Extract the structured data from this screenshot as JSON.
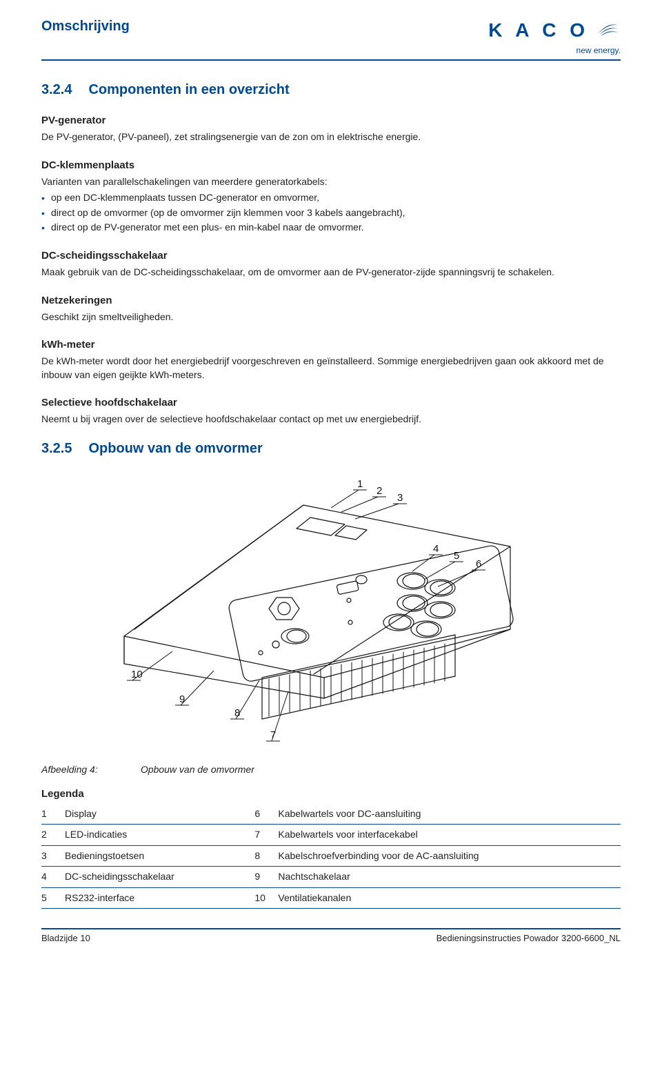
{
  "brand": {
    "name": "K A C O",
    "tagline": "new energy.",
    "swirl_color": "#004990"
  },
  "colors": {
    "accent": "#004990",
    "text": "#222222",
    "figure_line": "#111111",
    "figure_bg": "#ffffff"
  },
  "header_title": "Omschrijving",
  "section_324": {
    "num": "3.2.4",
    "title": "Componenten in een overzicht",
    "blocks": [
      {
        "term": "PV-generator",
        "text": "De PV-generator, (PV-paneel), zet stralingsenergie van de zon om in elektrische energie."
      },
      {
        "term": "DC-klemmenplaats",
        "intro": "Varianten van parallelschakelingen van meerdere generatorkabels:",
        "bullets": [
          "op een DC-klemmenplaats tussen DC-generator en omvormer,",
          "direct op de omvormer (op de omvormer zijn klemmen voor 3 kabels aangebracht),",
          "direct op de PV-generator met een plus- en min-kabel naar de omvormer."
        ]
      },
      {
        "term": "DC-scheidingsschakelaar",
        "text": "Maak gebruik van de DC-scheidingsschakelaar, om de omvormer aan de PV-generator-zijde spanningsvrij te schakelen."
      },
      {
        "term": "Netzekeringen",
        "text": "Geschikt zijn smeltveiligheden."
      },
      {
        "term": "kWh-meter",
        "text": "De kWh-meter wordt door het energiebedrijf voorgeschreven en geïnstalleerd. Sommige energiebedrijven gaan ook akkoord met de inbouw van eigen geijkte kWh-meters."
      },
      {
        "term": "Selectieve hoofdschakelaar",
        "text": "Neemt u bij vragen over de selectieve hoofdschakelaar contact op met uw energiebedrijf."
      }
    ]
  },
  "section_325": {
    "num": "3.2.5",
    "title": "Opbouw van de omvormer",
    "figure": {
      "label": "Afbeelding 4:",
      "caption": "Opbouw van de omvormer",
      "callouts": [
        "1",
        "2",
        "3",
        "4",
        "5",
        "6",
        "7",
        "8",
        "9",
        "10"
      ],
      "callout_positions": {
        "1": [
          420,
          24,
          380,
          54
        ],
        "2": [
          448,
          34,
          395,
          60
        ],
        "3": [
          478,
          44,
          415,
          70
        ],
        "4": [
          530,
          118,
          498,
          146
        ],
        "5": [
          560,
          128,
          515,
          158
        ],
        "6": [
          592,
          140,
          535,
          168
        ],
        "7": [
          294,
          388,
          318,
          320
        ],
        "8": [
          242,
          356,
          276,
          304
        ],
        "9": [
          162,
          336,
          210,
          290
        ],
        "10": [
          92,
          300,
          150,
          262
        ]
      }
    },
    "legend_title": "Legenda",
    "legend_rows": [
      [
        "1",
        "Display",
        "6",
        "Kabelwartels voor DC-aansluiting"
      ],
      [
        "2",
        "LED-indicaties",
        "7",
        "Kabelwartels voor interfacekabel"
      ],
      [
        "3",
        "Bedieningstoetsen",
        "8",
        "Kabelschroefverbinding voor de AC-aansluiting"
      ],
      [
        "4",
        "DC-scheidingsschakelaar",
        "9",
        "Nachtschakelaar"
      ],
      [
        "5",
        "RS232-interface",
        "10",
        "Ventilatiekanalen"
      ]
    ]
  },
  "footer": {
    "left": "Bladzijde 10",
    "right": "Bedieningsinstructies Powador 3200-6600_NL"
  }
}
